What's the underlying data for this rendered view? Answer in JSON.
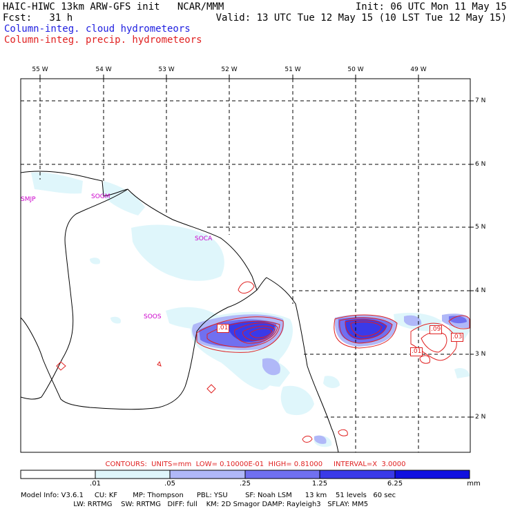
{
  "header": {
    "left_line1": "HAIC-HIWC 13km ARW-GFS init   NCAR/MMM",
    "left_line2": "Fcst:   31 h",
    "right_line1": "Init: 06 UTC Mon 11 May 15",
    "right_line2": "Valid: 13 UTC Tue 12 May 15 (10 LST Tue 12 May 15)",
    "cloud_label": "Column-integ. cloud hydrometeors",
    "precip_label": "Column-integ. precip. hydrometeors"
  },
  "colors": {
    "cloud_text": "#2020e0",
    "precip_text": "#e02020",
    "station": "#cc00cc",
    "shade_1": "#dff6fb",
    "shade_2": "#b0b8f8",
    "shade_3": "#7070f0",
    "shade_4": "#3a3ae8",
    "shade_5": "#1010e0"
  },
  "longitude_labels": [
    "55 W",
    "54 W",
    "53 W",
    "52 W",
    "51 W",
    "50 W",
    "49 W"
  ],
  "latitude_labels": [
    "7 N",
    "6 N",
    "5 N",
    "4 N",
    "3 N",
    "2 N"
  ],
  "stations": [
    "SMJP",
    "SOGM",
    "SOCA",
    "SOOS"
  ],
  "contour_labels": [
    ".01",
    ".09",
    ".03",
    ".01"
  ],
  "colorbar": {
    "labels": [
      ".01",
      ".05",
      ".25",
      "1.25",
      "6.25"
    ],
    "unit": "mm"
  },
  "contour_info": "CONTOURS:  UNITS=mm  LOW= 0.10000E-01  HIGH= 0.81000     INTERVAL=X  3.0000",
  "model_info": {
    "line1": "Model Info: V3.6.1     CU: KF       MP: Thompson      PBL: YSU        SF: Noah LSM      13 km    51 levels   60 sec",
    "line2": "                        LW: RRTMG    SW: RRTMG   DIFF: full    KM: 2D Smagor DAMP: Rayleigh3   SFLAY: MM5"
  }
}
